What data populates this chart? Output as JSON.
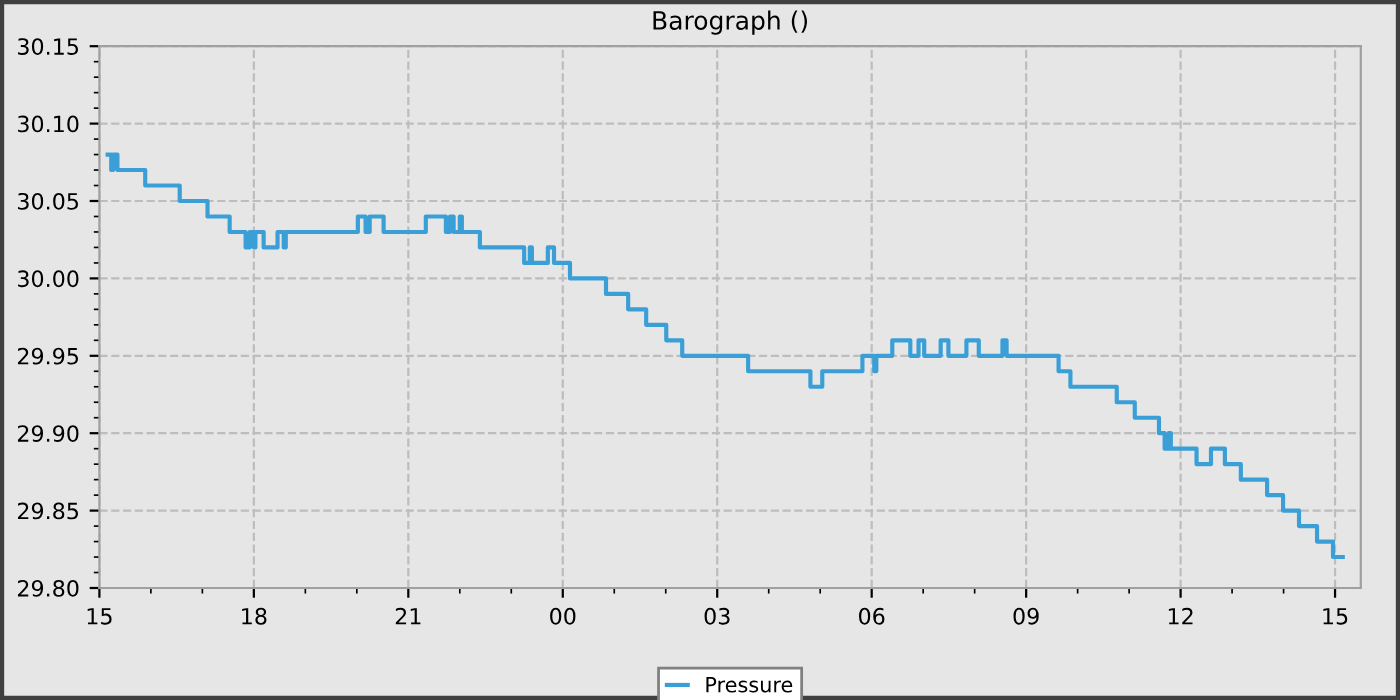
{
  "chart_data": {
    "type": "step",
    "title": "Barograph ()",
    "x": [
      15.16,
      15.23,
      15.27,
      15.35,
      15.89,
      16.56,
      17.1,
      17.53,
      17.84,
      17.92,
      18.0,
      18.03,
      18.19,
      18.46,
      18.58,
      18.62,
      20.02,
      20.17,
      20.25,
      20.52,
      21.34,
      21.73,
      21.81,
      21.88,
      22.0,
      22.04,
      22.39,
      23.25,
      23.36,
      23.4,
      23.71,
      23.83,
      24.14,
      24.84,
      25.27,
      25.62,
      26.01,
      26.32,
      27.6,
      28.81,
      29.04,
      29.82,
      30.05,
      30.09,
      30.4,
      30.75,
      30.91,
      31.02,
      31.34,
      31.49,
      31.84,
      32.08,
      32.54,
      32.62,
      33.63,
      33.86,
      34.76,
      35.11,
      35.58,
      35.69,
      35.77,
      35.81,
      36.31,
      36.59,
      36.86,
      37.17,
      37.68,
      37.99,
      38.3,
      38.65,
      38.96,
      39.15
    ],
    "series": [
      {
        "name": "Pressure",
        "color": "#3a9fd6",
        "values": [
          30.08,
          30.07,
          30.08,
          30.07,
          30.06,
          30.05,
          30.04,
          30.03,
          30.02,
          30.03,
          30.02,
          30.03,
          30.02,
          30.03,
          30.02,
          30.03,
          30.04,
          30.03,
          30.04,
          30.03,
          30.04,
          30.03,
          30.04,
          30.03,
          30.04,
          30.03,
          30.02,
          30.01,
          30.02,
          30.01,
          30.02,
          30.01,
          30.0,
          29.99,
          29.98,
          29.97,
          29.96,
          29.95,
          29.94,
          29.93,
          29.94,
          29.95,
          29.94,
          29.95,
          29.96,
          29.95,
          29.96,
          29.95,
          29.96,
          29.95,
          29.96,
          29.95,
          29.96,
          29.95,
          29.94,
          29.93,
          29.92,
          29.91,
          29.9,
          29.89,
          29.9,
          29.89,
          29.88,
          29.89,
          29.88,
          29.87,
          29.86,
          29.85,
          29.84,
          29.83,
          29.82,
          29.82
        ]
      }
    ],
    "xlim": [
      15,
      39.5
    ],
    "xticks": [
      {
        "value": 15,
        "label": "15"
      },
      {
        "value": 18,
        "label": "18"
      },
      {
        "value": 21,
        "label": "21"
      },
      {
        "value": 24,
        "label": "00"
      },
      {
        "value": 27,
        "label": "03"
      },
      {
        "value": 30,
        "label": "06"
      },
      {
        "value": 33,
        "label": "09"
      },
      {
        "value": 36,
        "label": "12"
      },
      {
        "value": 39,
        "label": "15"
      }
    ],
    "ylim": [
      29.8,
      30.15
    ],
    "yticks": [
      {
        "value": 29.8,
        "label": "29.80"
      },
      {
        "value": 29.85,
        "label": "29.85"
      },
      {
        "value": 29.9,
        "label": "29.90"
      },
      {
        "value": 29.95,
        "label": "29.95"
      },
      {
        "value": 30.0,
        "label": "30.00"
      },
      {
        "value": 30.05,
        "label": "30.05"
      },
      {
        "value": 30.1,
        "label": "30.10"
      },
      {
        "value": 30.15,
        "label": "30.15"
      }
    ],
    "grid": true,
    "legend": "bottom",
    "marker": "none",
    "line_style": "solid"
  }
}
